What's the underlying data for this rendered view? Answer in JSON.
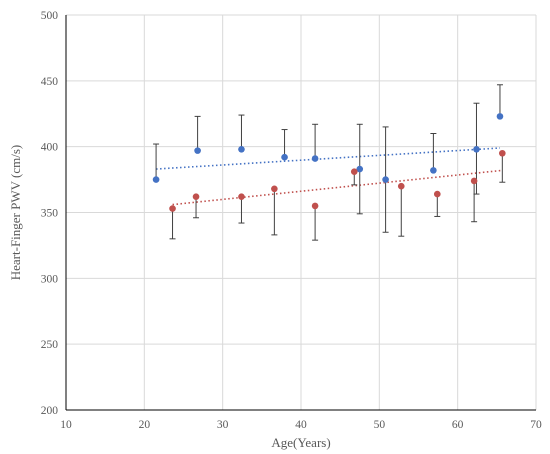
{
  "chart_data": {
    "type": "scatter",
    "title": "",
    "xlabel": "Age(Years)",
    "ylabel": "Heart-Finger PWV (cm/s)",
    "xlim": [
      10,
      70
    ],
    "ylim": [
      200,
      500
    ],
    "x_ticks": [
      10,
      20,
      30,
      40,
      50,
      60,
      70
    ],
    "y_ticks": [
      200,
      250,
      300,
      350,
      400,
      450,
      500
    ],
    "grid": true,
    "legend": "none",
    "series": [
      {
        "color": "#4472c4",
        "x": [
          21.5,
          26.8,
          32.4,
          37.9,
          41.8,
          47.5,
          50.8,
          56.9,
          62.4,
          65.4
        ],
        "y": [
          375,
          397,
          398,
          392,
          391,
          383,
          375,
          382,
          398,
          423
        ],
        "err_low": [
          375,
          397,
          398,
          392,
          391,
          349,
          335,
          382,
          364,
          423
        ],
        "err_high": [
          402,
          423,
          424,
          413,
          417,
          417,
          415,
          410,
          433,
          447
        ],
        "trend": {
          "x": [
            21.5,
            65.4
          ],
          "y": [
            383,
            399
          ]
        }
      },
      {
        "color": "#c0504d",
        "x": [
          23.6,
          26.6,
          32.4,
          36.6,
          41.8,
          46.8,
          52.8,
          57.4,
          62.1,
          65.7
        ],
        "y": [
          353,
          362,
          362,
          368,
          355,
          381,
          370,
          364,
          374,
          395
        ],
        "err_low": [
          330,
          346,
          342,
          333,
          329,
          371,
          332,
          347,
          343,
          373
        ],
        "err_high": [
          353,
          362,
          362,
          368,
          355,
          381,
          370,
          364,
          374,
          395
        ],
        "trend": {
          "x": [
            23.6,
            65.7
          ],
          "y": [
            356,
            382
          ]
        }
      }
    ]
  }
}
